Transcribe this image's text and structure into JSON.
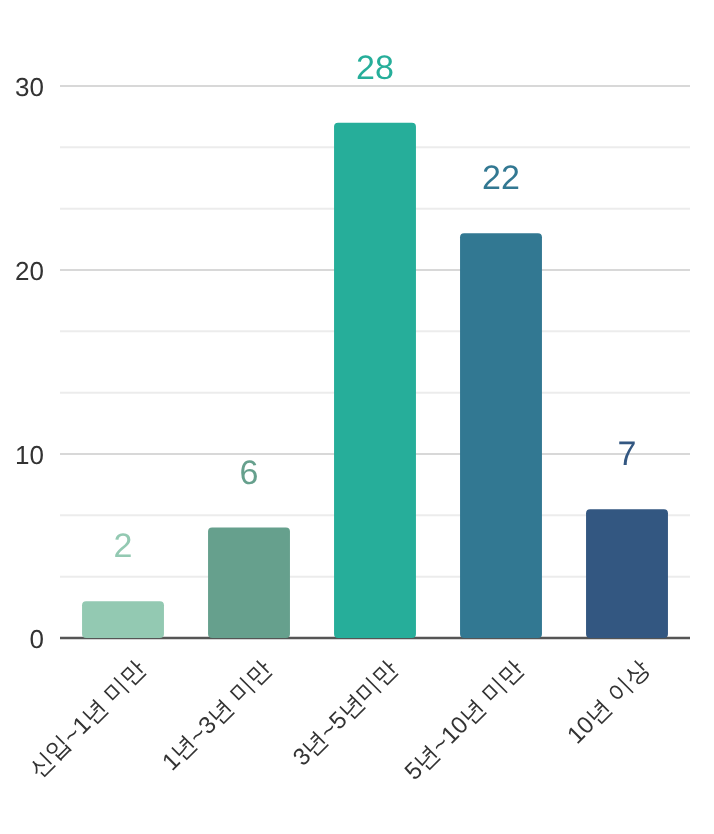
{
  "chart_data": {
    "type": "bar",
    "categories": [
      "신입~1년 미만",
      "1년~3년 미만",
      "3년~5년미만",
      "5년~10년 미만",
      "10년 이상"
    ],
    "values": [
      2,
      6,
      28,
      22,
      7
    ],
    "colors": [
      "#93c9b2",
      "#66a08d",
      "#26ae9a",
      "#327892",
      "#335781"
    ],
    "ylim": [
      0,
      30
    ],
    "yticks": [
      0,
      {
        "value": 3.333,
        "label": null
      },
      {
        "value": 6.667,
        "label": null
      },
      10,
      {
        "value": 13.333,
        "label": null
      },
      {
        "value": 16.667,
        "label": null
      },
      20,
      {
        "value": 23.333,
        "label": null
      },
      {
        "value": 26.667,
        "label": null
      },
      30
    ],
    "grid": "y",
    "data_labels": true
  }
}
